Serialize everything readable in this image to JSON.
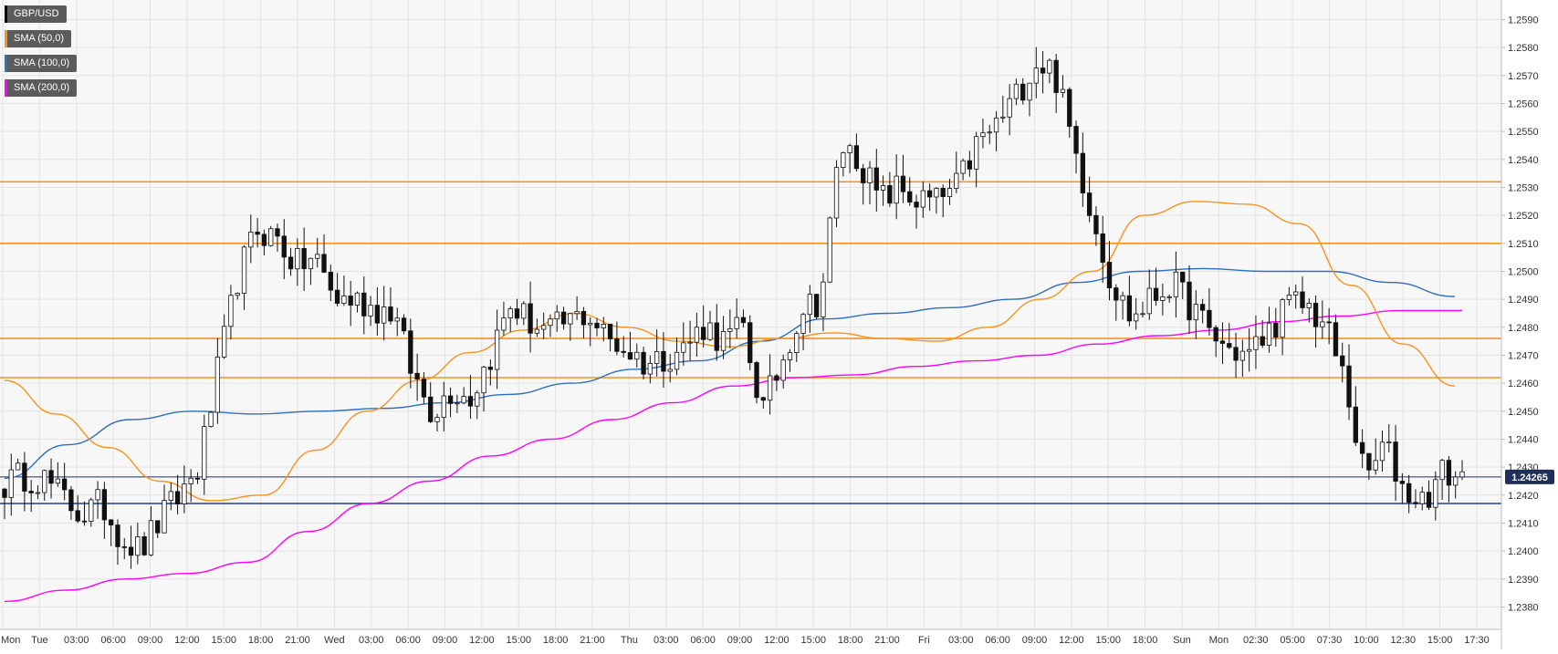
{
  "chart_data": {
    "type": "candlestick",
    "symbol": "GBP/USD",
    "legend": [
      {
        "label": "GBP/USD",
        "color": "#000000"
      },
      {
        "label": "SMA (50,0)",
        "color": "#f7931e"
      },
      {
        "label": "SMA (100,0)",
        "color": "#2e6fbf"
      },
      {
        "label": "SMA (200,0)",
        "color": "#ff00ff"
      }
    ],
    "ylim": [
      1.2372,
      1.2597
    ],
    "y_ticks": [
      "1.2380",
      "1.2390",
      "1.2400",
      "1.2410",
      "1.2420",
      "1.2430",
      "1.2440",
      "1.2450",
      "1.2460",
      "1.2470",
      "1.2480",
      "1.2490",
      "1.2500",
      "1.2510",
      "1.2520",
      "1.2530",
      "1.2540",
      "1.2550",
      "1.2560",
      "1.2570",
      "1.2580",
      "1.2590"
    ],
    "x_ticks": [
      "Mon",
      "Tue",
      "03:00",
      "06:00",
      "09:00",
      "12:00",
      "15:00",
      "18:00",
      "21:00",
      "Wed",
      "03:00",
      "06:00",
      "09:00",
      "12:00",
      "15:00",
      "18:00",
      "21:00",
      "Thu",
      "03:00",
      "06:00",
      "09:00",
      "12:00",
      "15:00",
      "18:00",
      "21:00",
      "Fri",
      "03:00",
      "06:00",
      "09:00",
      "12:00",
      "15:00",
      "18:00",
      "Sun",
      "Mon",
      "02:30",
      "05:00",
      "07:30",
      "10:00",
      "12:30",
      "15:00",
      "17:30"
    ],
    "current_price": "1.24265",
    "current_value": 1.24265,
    "horizontal_levels": [
      {
        "value": 1.2532,
        "color": "#f7931e"
      },
      {
        "value": 1.251,
        "color": "#f7931e"
      },
      {
        "value": 1.2476,
        "color": "#f7931e"
      },
      {
        "value": 1.2462,
        "color": "#f7931e"
      },
      {
        "value": 1.2417,
        "color": "#1f3f8f"
      }
    ],
    "price_path": [
      1.2424,
      1.2427,
      1.2426,
      1.2419,
      1.2413,
      1.2417,
      1.2405,
      1.24,
      1.2411,
      1.242,
      1.243,
      1.2465,
      1.2498,
      1.2515,
      1.2512,
      1.2502,
      1.2505,
      1.249,
      1.249,
      1.2487,
      1.2486,
      1.2463,
      1.245,
      1.2458,
      1.2455,
      1.247,
      1.2488,
      1.2482,
      1.2478,
      1.2482,
      1.2485,
      1.2476,
      1.2472,
      1.2467,
      1.247,
      1.2473,
      1.2481,
      1.2475,
      1.248,
      1.245,
      1.2468,
      1.2487,
      1.249,
      1.2545,
      1.254,
      1.2525,
      1.253,
      1.2525,
      1.2525,
      1.253,
      1.2545,
      1.2552,
      1.2562,
      1.2575,
      1.2572,
      1.2545,
      1.252,
      1.2495,
      1.2483,
      1.249,
      1.2496,
      1.2488,
      1.2478,
      1.2472,
      1.247,
      1.2478,
      1.2488,
      1.2488,
      1.248,
      1.246,
      1.2425,
      1.2438,
      1.2422,
      1.2418,
      1.2428,
      1.2426
    ],
    "sma50": [
      [
        0,
        1.2461
      ],
      [
        1,
        1.2449
      ],
      [
        2,
        1.2437
      ],
      [
        3,
        1.2425
      ],
      [
        4,
        1.2418
      ],
      [
        5,
        1.242
      ],
      [
        6,
        1.2436
      ],
      [
        7,
        1.245
      ],
      [
        8,
        1.2461
      ],
      [
        9,
        1.2471
      ],
      [
        10,
        1.2479
      ],
      [
        11,
        1.2485
      ],
      [
        12,
        1.248
      ],
      [
        13,
        1.2475
      ],
      [
        14,
        1.2473
      ],
      [
        15,
        1.2476
      ],
      [
        16,
        1.2478
      ],
      [
        17,
        1.2476
      ],
      [
        18,
        1.2475
      ],
      [
        19,
        1.248
      ],
      [
        20,
        1.249
      ],
      [
        21,
        1.25
      ],
      [
        22,
        1.252
      ],
      [
        23,
        1.2525
      ],
      [
        24,
        1.2524
      ],
      [
        25,
        1.2517
      ],
      [
        26,
        1.2495
      ],
      [
        27,
        1.2474
      ],
      [
        28,
        1.2459
      ]
    ],
    "sma100": [
      [
        0,
        1.2426
      ],
      [
        1,
        1.2438
      ],
      [
        2,
        1.2447
      ],
      [
        3,
        1.245
      ],
      [
        4,
        1.2449
      ],
      [
        5,
        1.245
      ],
      [
        6,
        1.2451
      ],
      [
        7,
        1.2453
      ],
      [
        8,
        1.2456
      ],
      [
        9,
        1.246
      ],
      [
        10,
        1.2465
      ],
      [
        11,
        1.2468
      ],
      [
        12,
        1.2475
      ],
      [
        13,
        1.2483
      ],
      [
        14,
        1.2485
      ],
      [
        15,
        1.2487
      ],
      [
        16,
        1.249
      ],
      [
        17,
        1.2496
      ],
      [
        18,
        1.25
      ],
      [
        19,
        1.2501
      ],
      [
        20,
        1.25
      ],
      [
        21,
        1.25
      ],
      [
        22,
        1.2496
      ],
      [
        23,
        1.2491
      ]
    ],
    "sma200": [
      [
        0,
        1.2382
      ],
      [
        1,
        1.2386
      ],
      [
        2,
        1.239
      ],
      [
        3,
        1.2392
      ],
      [
        4,
        1.2396
      ],
      [
        5,
        1.2407
      ],
      [
        6,
        1.2417
      ],
      [
        7,
        1.2425
      ],
      [
        8,
        1.2434
      ],
      [
        9,
        1.244
      ],
      [
        10,
        1.2447
      ],
      [
        11,
        1.2453
      ],
      [
        12,
        1.2459
      ],
      [
        13,
        1.2462
      ],
      [
        14,
        1.2463
      ],
      [
        15,
        1.2466
      ],
      [
        16,
        1.2468
      ],
      [
        17,
        1.247
      ],
      [
        18,
        1.2474
      ],
      [
        19,
        1.2477
      ],
      [
        20,
        1.2479
      ],
      [
        21,
        1.2482
      ],
      [
        22,
        1.2484
      ],
      [
        23,
        1.2486
      ],
      [
        24,
        1.2486
      ]
    ],
    "grid": true
  }
}
